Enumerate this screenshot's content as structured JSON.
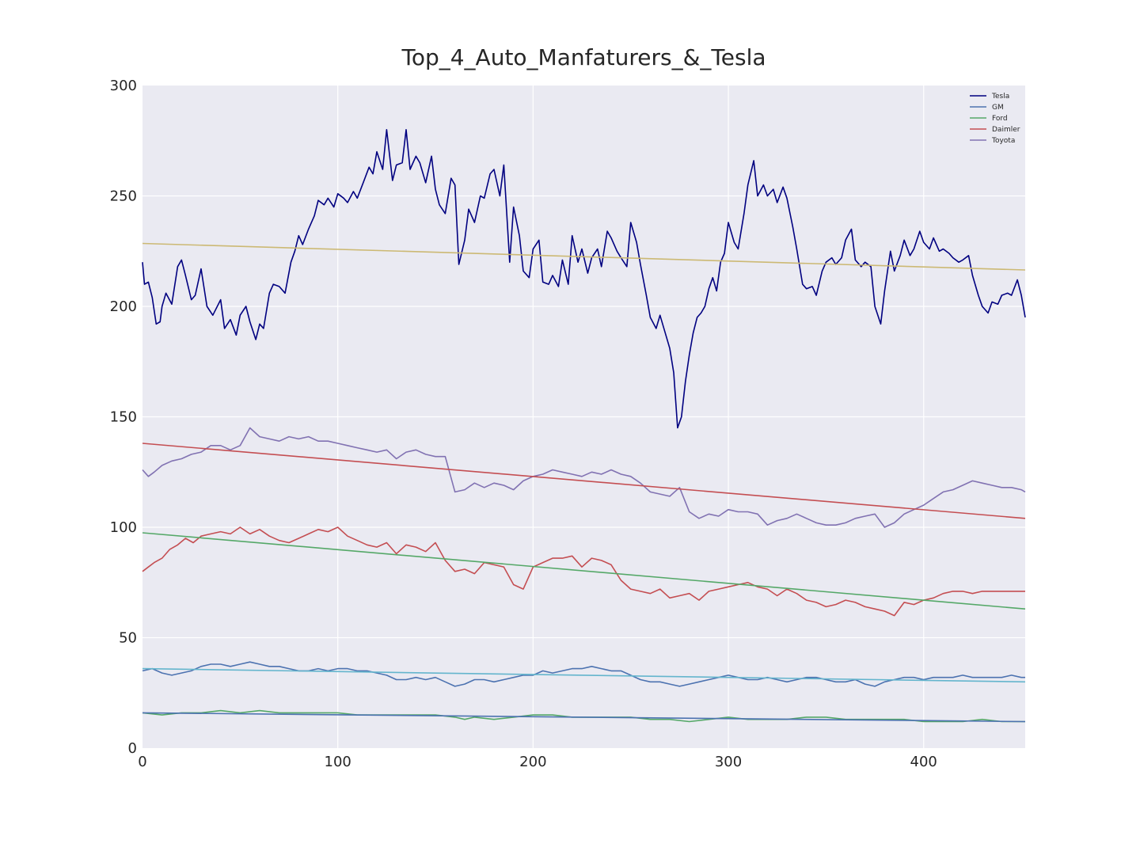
{
  "chart_data": {
    "type": "line",
    "title": "Top_4_Auto_Manfaturers_&_Tesla",
    "xlabel": "",
    "ylabel": "",
    "xlim": [
      0,
      452
    ],
    "ylim": [
      0,
      300
    ],
    "x_ticks": [
      0,
      100,
      200,
      300,
      400
    ],
    "y_ticks": [
      0,
      50,
      100,
      150,
      200,
      250,
      300
    ],
    "grid": true,
    "legend_position": "top-right",
    "legend": [
      {
        "name": "Tesla",
        "color": "#000080"
      },
      {
        "name": "GM",
        "color": "#4c72b0"
      },
      {
        "name": "Ford",
        "color": "#55a868"
      },
      {
        "name": "Daimler",
        "color": "#c44e52"
      },
      {
        "name": "Toyota",
        "color": "#8172b2"
      }
    ],
    "series": [
      {
        "name": "Tesla",
        "color": "#000080",
        "x": [
          0,
          1,
          3,
          5,
          7,
          9,
          10,
          12,
          15,
          18,
          20,
          22,
          25,
          27,
          30,
          33,
          36,
          40,
          42,
          45,
          48,
          50,
          53,
          55,
          58,
          60,
          62,
          65,
          67,
          70,
          73,
          76,
          78,
          80,
          82,
          85,
          88,
          90,
          93,
          95,
          98,
          100,
          103,
          105,
          108,
          110,
          113,
          116,
          118,
          120,
          123,
          125,
          128,
          130,
          133,
          135,
          137,
          140,
          142,
          145,
          148,
          150,
          152,
          155,
          158,
          160,
          162,
          165,
          167,
          170,
          173,
          175,
          178,
          180,
          183,
          185,
          188,
          190,
          193,
          195,
          198,
          200,
          203,
          205,
          208,
          210,
          213,
          215,
          218,
          220,
          223,
          225,
          228,
          230,
          233,
          235,
          238,
          240,
          243,
          245,
          248,
          250,
          253,
          255,
          258,
          260,
          263,
          265,
          268,
          270,
          272,
          274,
          276,
          278,
          280,
          282,
          284,
          286,
          288,
          290,
          292,
          294,
          296,
          298,
          300,
          303,
          305,
          308,
          310,
          313,
          315,
          318,
          320,
          323,
          325,
          328,
          330,
          333,
          335,
          338,
          340,
          343,
          345,
          348,
          350,
          353,
          355,
          358,
          360,
          363,
          365,
          368,
          370,
          373,
          375,
          378,
          380,
          383,
          385,
          388,
          390,
          393,
          395,
          398,
          400,
          403,
          405,
          408,
          410,
          413,
          415,
          418,
          420,
          423,
          425,
          428,
          430,
          433,
          435,
          438,
          440,
          443,
          445,
          448,
          450,
          452
        ],
        "y": [
          220,
          210,
          211,
          204,
          192,
          193,
          200,
          206,
          201,
          218,
          221,
          214,
          203,
          205,
          217,
          200,
          196,
          203,
          190,
          194,
          187,
          196,
          200,
          193,
          185,
          192,
          190,
          206,
          210,
          209,
          206,
          220,
          225,
          232,
          228,
          235,
          241,
          248,
          246,
          249,
          245,
          251,
          249,
          247,
          252,
          249,
          256,
          263,
          260,
          270,
          262,
          280,
          257,
          264,
          265,
          280,
          262,
          268,
          265,
          256,
          268,
          253,
          246,
          242,
          258,
          255,
          219,
          230,
          244,
          238,
          250,
          249,
          260,
          262,
          250,
          264,
          220,
          245,
          232,
          216,
          213,
          226,
          230,
          211,
          210,
          214,
          209,
          221,
          210,
          232,
          220,
          226,
          215,
          222,
          226,
          218,
          234,
          231,
          225,
          222,
          218,
          238,
          229,
          219,
          205,
          195,
          190,
          196,
          187,
          181,
          170,
          145,
          150,
          166,
          178,
          188,
          195,
          197,
          200,
          208,
          213,
          207,
          220,
          224,
          238,
          229,
          226,
          242,
          255,
          266,
          250,
          255,
          250,
          253,
          247,
          254,
          249,
          236,
          226,
          210,
          208,
          209,
          205,
          216,
          220,
          222,
          219,
          222,
          230,
          235,
          221,
          218,
          220,
          218,
          200,
          192,
          207,
          225,
          216,
          223,
          230,
          223,
          226,
          234,
          229,
          226,
          231,
          225,
          226,
          224,
          222,
          220,
          221,
          223,
          214,
          205,
          200,
          197,
          202,
          201,
          205,
          206,
          205,
          212,
          205,
          195
        ]
      },
      {
        "name": "GM",
        "color": "#4c72b0",
        "x": [
          0,
          5,
          10,
          15,
          20,
          25,
          30,
          35,
          40,
          45,
          50,
          55,
          60,
          65,
          70,
          75,
          80,
          85,
          90,
          95,
          100,
          105,
          110,
          115,
          120,
          125,
          130,
          135,
          140,
          145,
          150,
          155,
          160,
          165,
          170,
          175,
          180,
          185,
          190,
          195,
          200,
          205,
          210,
          215,
          220,
          225,
          230,
          235,
          240,
          245,
          250,
          255,
          260,
          265,
          270,
          275,
          280,
          285,
          290,
          295,
          300,
          305,
          310,
          315,
          320,
          325,
          330,
          335,
          340,
          345,
          350,
          355,
          360,
          365,
          370,
          375,
          380,
          385,
          390,
          395,
          400,
          405,
          410,
          415,
          420,
          425,
          430,
          435,
          440,
          445,
          450,
          452
        ],
        "y": [
          35,
          36,
          34,
          33,
          34,
          35,
          37,
          38,
          38,
          37,
          38,
          39,
          38,
          37,
          37,
          36,
          35,
          35,
          36,
          35,
          36,
          36,
          35,
          35,
          34,
          33,
          31,
          31,
          32,
          31,
          32,
          30,
          28,
          29,
          31,
          31,
          30,
          31,
          32,
          33,
          33,
          35,
          34,
          35,
          36,
          36,
          37,
          36,
          35,
          35,
          33,
          31,
          30,
          30,
          29,
          28,
          29,
          30,
          31,
          32,
          33,
          32,
          31,
          31,
          32,
          31,
          30,
          31,
          32,
          32,
          31,
          30,
          30,
          31,
          29,
          28,
          30,
          31,
          32,
          32,
          31,
          32,
          32,
          32,
          33,
          32,
          32,
          32,
          32,
          33,
          32,
          32
        ]
      },
      {
        "name": "Ford",
        "color": "#55a868",
        "x": [
          0,
          10,
          20,
          30,
          40,
          50,
          60,
          70,
          80,
          90,
          100,
          110,
          120,
          130,
          140,
          150,
          160,
          165,
          170,
          180,
          190,
          200,
          210,
          220,
          230,
          240,
          250,
          260,
          270,
          280,
          290,
          300,
          310,
          320,
          330,
          340,
          350,
          360,
          370,
          380,
          390,
          400,
          410,
          420,
          430,
          440,
          452
        ],
        "y": [
          16,
          15,
          16,
          16,
          17,
          16,
          17,
          16,
          16,
          16,
          16,
          15,
          15,
          15,
          15,
          15,
          14,
          13,
          14,
          13,
          14,
          15,
          15,
          14,
          14,
          14,
          14,
          13,
          13,
          12,
          13,
          14,
          13,
          13,
          13,
          14,
          14,
          13,
          13,
          13,
          13,
          12,
          12,
          12,
          13,
          12,
          12
        ]
      },
      {
        "name": "Daimler",
        "color": "#c44e52",
        "x": [
          0,
          3,
          6,
          10,
          14,
          18,
          22,
          26,
          30,
          35,
          40,
          45,
          50,
          55,
          60,
          65,
          70,
          75,
          80,
          85,
          90,
          95,
          100,
          105,
          110,
          115,
          120,
          125,
          130,
          135,
          140,
          145,
          150,
          155,
          160,
          165,
          170,
          175,
          180,
          185,
          190,
          195,
          200,
          205,
          210,
          215,
          220,
          225,
          230,
          235,
          240,
          245,
          250,
          255,
          260,
          265,
          270,
          275,
          280,
          285,
          290,
          295,
          300,
          305,
          310,
          315,
          320,
          325,
          330,
          335,
          340,
          345,
          350,
          355,
          360,
          365,
          370,
          375,
          380,
          385,
          390,
          395,
          400,
          405,
          410,
          415,
          420,
          425,
          430,
          435,
          440,
          445,
          450,
          452
        ],
        "y": [
          80,
          82,
          84,
          86,
          90,
          92,
          95,
          93,
          96,
          97,
          98,
          97,
          100,
          97,
          99,
          96,
          94,
          93,
          95,
          97,
          99,
          98,
          100,
          96,
          94,
          92,
          91,
          93,
          88,
          92,
          91,
          89,
          93,
          85,
          80,
          81,
          79,
          84,
          83,
          82,
          74,
          72,
          82,
          84,
          86,
          86,
          87,
          82,
          86,
          85,
          83,
          76,
          72,
          71,
          70,
          72,
          68,
          69,
          70,
          67,
          71,
          72,
          73,
          74,
          75,
          73,
          72,
          69,
          72,
          70,
          67,
          66,
          64,
          65,
          67,
          66,
          64,
          63,
          62,
          60,
          66,
          65,
          67,
          68,
          70,
          71,
          71,
          70,
          71,
          71,
          71,
          71,
          71,
          71
        ]
      },
      {
        "name": "Toyota",
        "color": "#8172b2",
        "x": [
          0,
          3,
          6,
          10,
          15,
          20,
          25,
          30,
          35,
          40,
          45,
          50,
          55,
          60,
          65,
          70,
          75,
          80,
          85,
          90,
          95,
          100,
          105,
          110,
          115,
          120,
          125,
          130,
          135,
          140,
          145,
          150,
          155,
          160,
          165,
          170,
          175,
          180,
          185,
          190,
          195,
          200,
          205,
          210,
          215,
          220,
          225,
          230,
          235,
          240,
          245,
          250,
          255,
          260,
          265,
          270,
          275,
          280,
          285,
          290,
          295,
          300,
          305,
          310,
          315,
          320,
          325,
          330,
          335,
          340,
          345,
          350,
          355,
          360,
          365,
          370,
          375,
          380,
          385,
          390,
          395,
          400,
          405,
          410,
          415,
          420,
          425,
          430,
          435,
          440,
          445,
          450,
          452
        ],
        "y": [
          126,
          123,
          125,
          128,
          130,
          131,
          133,
          134,
          137,
          137,
          135,
          137,
          145,
          141,
          140,
          139,
          141,
          140,
          141,
          139,
          139,
          138,
          137,
          136,
          135,
          134,
          135,
          131,
          134,
          135,
          133,
          132,
          132,
          116,
          117,
          120,
          118,
          120,
          119,
          117,
          121,
          123,
          124,
          126,
          125,
          124,
          123,
          125,
          124,
          126,
          124,
          123,
          120,
          116,
          115,
          114,
          118,
          107,
          104,
          106,
          105,
          108,
          107,
          107,
          106,
          101,
          103,
          104,
          106,
          104,
          102,
          101,
          101,
          102,
          104,
          105,
          106,
          100,
          102,
          106,
          108,
          110,
          113,
          116,
          117,
          119,
          121,
          120,
          119,
          118,
          118,
          117,
          116
        ]
      },
      {
        "name": "",
        "color": "#ccb974",
        "x": [
          0,
          452
        ],
        "y": [
          228.5,
          216.5
        ]
      },
      {
        "name": "",
        "color": "#c44e52",
        "x": [
          0,
          452
        ],
        "y": [
          138,
          104
        ]
      },
      {
        "name": "",
        "color": "#55a868",
        "x": [
          0,
          452
        ],
        "y": [
          97.5,
          63
        ]
      },
      {
        "name": "",
        "color": "#64b5cd",
        "x": [
          0,
          452
        ],
        "y": [
          36,
          30
        ]
      },
      {
        "name": "",
        "color": "#4c72b0",
        "x": [
          0,
          452
        ],
        "y": [
          16,
          12
        ]
      }
    ]
  }
}
